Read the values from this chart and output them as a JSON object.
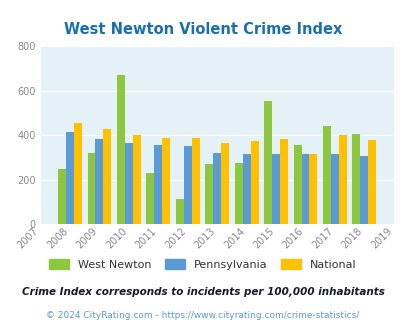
{
  "title": "West Newton Violent Crime Index",
  "all_years": [
    2007,
    2008,
    2009,
    2010,
    2011,
    2012,
    2013,
    2014,
    2015,
    2016,
    2017,
    2018,
    2019
  ],
  "data_years": [
    2008,
    2009,
    2010,
    2011,
    2012,
    2013,
    2014,
    2015,
    2016,
    2017,
    2018
  ],
  "west_newton": [
    250,
    320,
    670,
    230,
    115,
    270,
    275,
    555,
    355,
    440,
    405
  ],
  "pennsylvania": [
    415,
    385,
    365,
    355,
    350,
    320,
    315,
    315,
    315,
    315,
    305
  ],
  "national": [
    455,
    430,
    400,
    390,
    390,
    365,
    375,
    385,
    315,
    400,
    380
  ],
  "color_wn": "#8dc63f",
  "color_pa": "#5b9bd5",
  "color_nat": "#ffc000",
  "bg_color": "#e4f1f7",
  "ylim": [
    0,
    800
  ],
  "yticks": [
    0,
    200,
    400,
    600,
    800
  ],
  "legend_labels": [
    "West Newton",
    "Pennsylvania",
    "National"
  ],
  "footnote1": "Crime Index corresponds to incidents per 100,000 inhabitants",
  "footnote2": "© 2024 CityRating.com - https://www.cityrating.com/crime-statistics/",
  "title_color": "#1a6faf",
  "footnote1_color": "#1a1a2e",
  "footnote2_color": "#5b9bd5",
  "bar_width": 0.27
}
